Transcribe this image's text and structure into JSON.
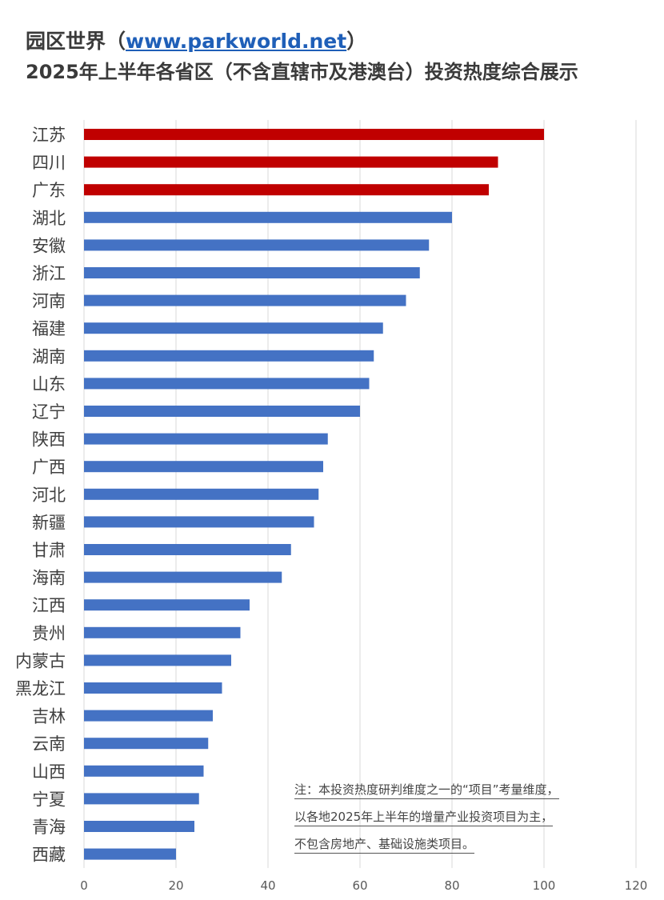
{
  "title": {
    "prefix": "园区世界（",
    "link": "www.parkworld.net",
    "suffix": "）",
    "line2": "2025年上半年各省区（不含直辖市及港澳台）投资热度综合展示"
  },
  "note": {
    "lines": [
      "注：本投资热度研判维度之一的“项目”考量维度，",
      "以各地2025年上半年的增量产业投资项目为主，",
      "不包含房地产、基础设施类项目。"
    ]
  },
  "colors": {
    "highlight": "#c00000",
    "default": "#4472c4",
    "grid": "#d9d9d9",
    "label": "#404040",
    "tick": "#595959"
  },
  "chart_data": {
    "type": "bar",
    "orientation": "horizontal",
    "categories": [
      "江苏",
      "四川",
      "广东",
      "湖北",
      "安徽",
      "浙江",
      "河南",
      "福建",
      "湖南",
      "山东",
      "辽宁",
      "陕西",
      "广西",
      "河北",
      "新疆",
      "甘肃",
      "海南",
      "江西",
      "贵州",
      "内蒙古",
      "黑龙江",
      "吉林",
      "云南",
      "山西",
      "宁夏",
      "青海",
      "西藏"
    ],
    "values": [
      100,
      90,
      88,
      80,
      75,
      73,
      70,
      65,
      63,
      62,
      60,
      53,
      52,
      51,
      50,
      45,
      43,
      36,
      34,
      32,
      30,
      28,
      27,
      26,
      25,
      24,
      20
    ],
    "highlighted": [
      "江苏",
      "四川",
      "广东"
    ],
    "xlim": [
      0,
      120
    ],
    "xticks": [
      0,
      20,
      40,
      60,
      80,
      100,
      120
    ],
    "grid": true,
    "xlabel": "",
    "ylabel": ""
  }
}
